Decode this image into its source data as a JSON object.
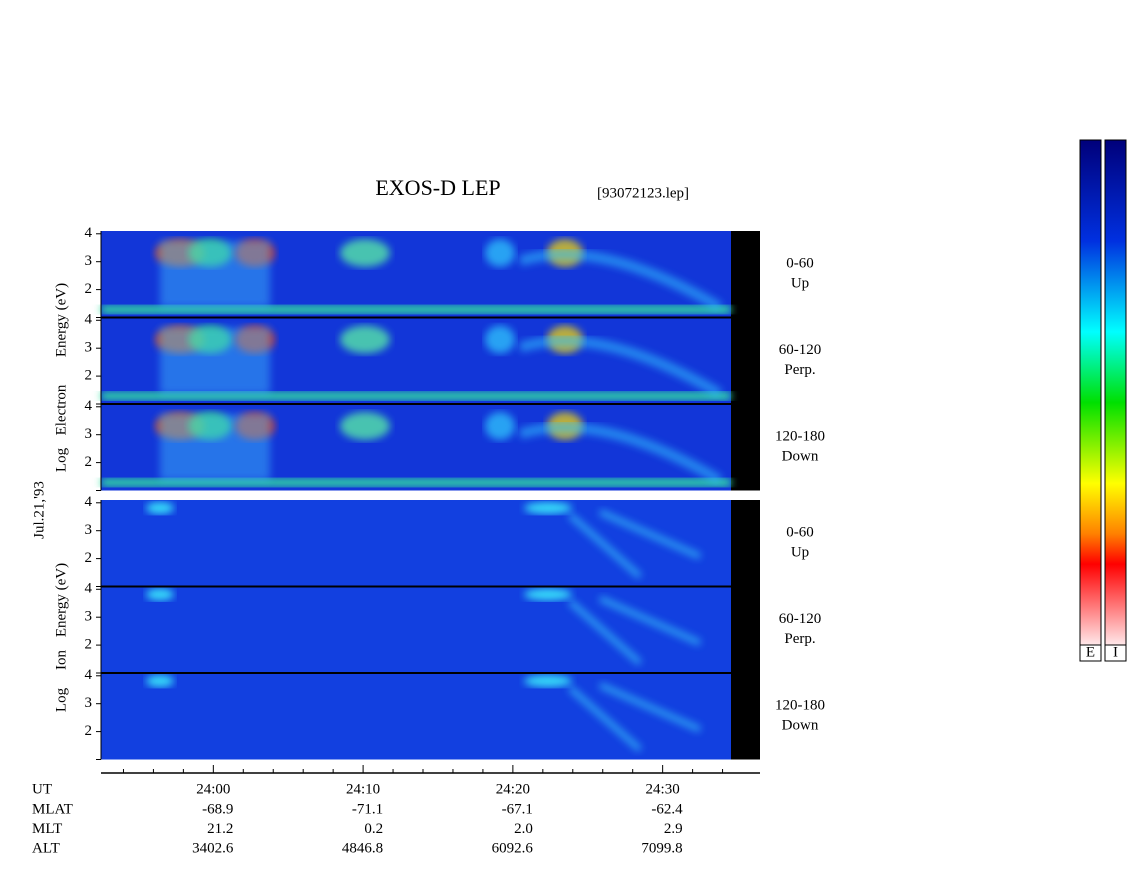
{
  "chart_data": {
    "type": "spectrogram",
    "title": "EXOS-D LEP",
    "file_label": "[93072123.lep]",
    "date_label": "Jul.21,'93",
    "xlim": [
      -7.5,
      36.5
    ],
    "xticks": [
      {
        "value": 0,
        "label": "24:00"
      },
      {
        "value": 10,
        "label": "24:10"
      },
      {
        "value": 20,
        "label": "24:20"
      },
      {
        "value": 30,
        "label": "24:30"
      }
    ],
    "xminorticks": [
      -6,
      -4,
      -2,
      2,
      4,
      6,
      8,
      12,
      14,
      16,
      18,
      22,
      24,
      26,
      28,
      32,
      34
    ],
    "panels": [
      {
        "ylabel": [
          "Log",
          "Electron",
          "Energy (eV)"
        ],
        "ylim": [
          1,
          4.1
        ],
        "yticks": [
          2,
          3,
          4
        ],
        "subpanels": [
          {
            "pitch": "0-60",
            "direction": "Up"
          },
          {
            "pitch": "60-120",
            "direction": "Perp."
          },
          {
            "pitch": "120-180",
            "direction": "Down"
          }
        ]
      },
      {
        "ylabel": [
          "Log",
          "Ion",
          "Energy (eV)"
        ],
        "ylim": [
          1,
          4.1
        ],
        "yticks": [
          2,
          3,
          4
        ],
        "subpanels": [
          {
            "pitch": "0-60",
            "direction": "Up"
          },
          {
            "pitch": "60-120",
            "direction": "Perp."
          },
          {
            "pitch": "120-180",
            "direction": "Down"
          }
        ]
      }
    ],
    "ut_label": "UT",
    "ephemeris": [
      {
        "label": "MLAT",
        "values": [
          "-68.9",
          "-71.1",
          "-67.1",
          "-62.4"
        ]
      },
      {
        "label": "MLT",
        "values": [
          "21.2",
          "0.2",
          "2.0",
          "2.9"
        ]
      },
      {
        "label": "ALT",
        "values": [
          "3402.6",
          "4846.8",
          "6092.6",
          "7099.8"
        ]
      }
    ],
    "colorbars": [
      "E",
      "I"
    ]
  }
}
